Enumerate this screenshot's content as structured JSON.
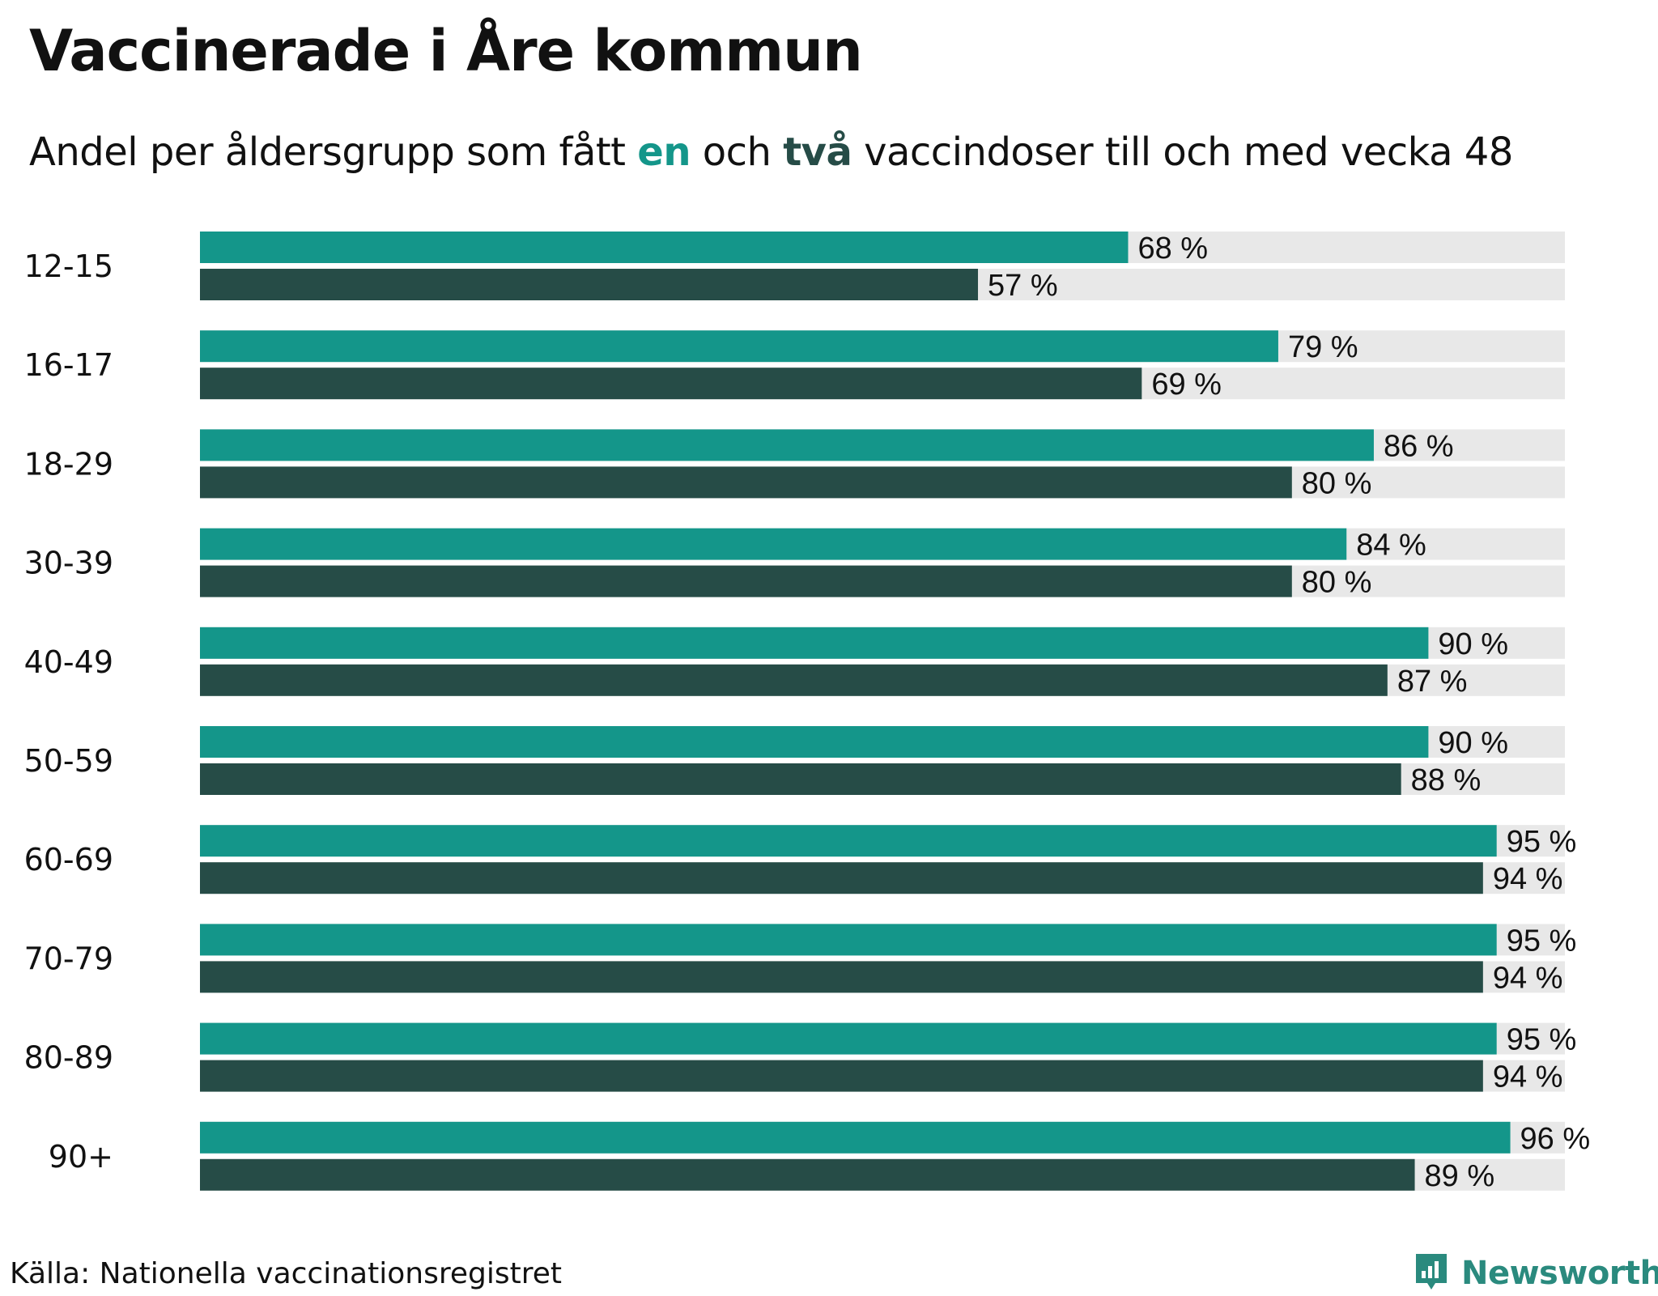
{
  "title": "Vaccinerade i Åre kommun",
  "subtitle": {
    "pre": "Andel per åldersgrupp som fått ",
    "hl1": "en",
    "mid": " och ",
    "hl2": "två",
    "post": " vaccindoser till och med vecka 48"
  },
  "colors": {
    "dose1": "#14968a",
    "dose2": "#264c47",
    "track": "#e8e8e8"
  },
  "chart_data": {
    "type": "bar",
    "orientation": "horizontal",
    "title": "Vaccinerade i Åre kommun",
    "xlim": [
      0,
      100
    ],
    "categories": [
      "12-15",
      "16-17",
      "18-29",
      "30-39",
      "40-49",
      "50-59",
      "60-69",
      "70-79",
      "80-89",
      "90+"
    ],
    "series": [
      {
        "name": "en",
        "values": [
          68,
          79,
          86,
          84,
          90,
          90,
          95,
          95,
          95,
          96
        ]
      },
      {
        "name": "två",
        "values": [
          57,
          69,
          80,
          80,
          87,
          88,
          94,
          94,
          94,
          89
        ]
      }
    ],
    "value_suffix": " %"
  },
  "source": "Källa: Nationella vaccinationsregistret",
  "brand": "Newsworthy"
}
